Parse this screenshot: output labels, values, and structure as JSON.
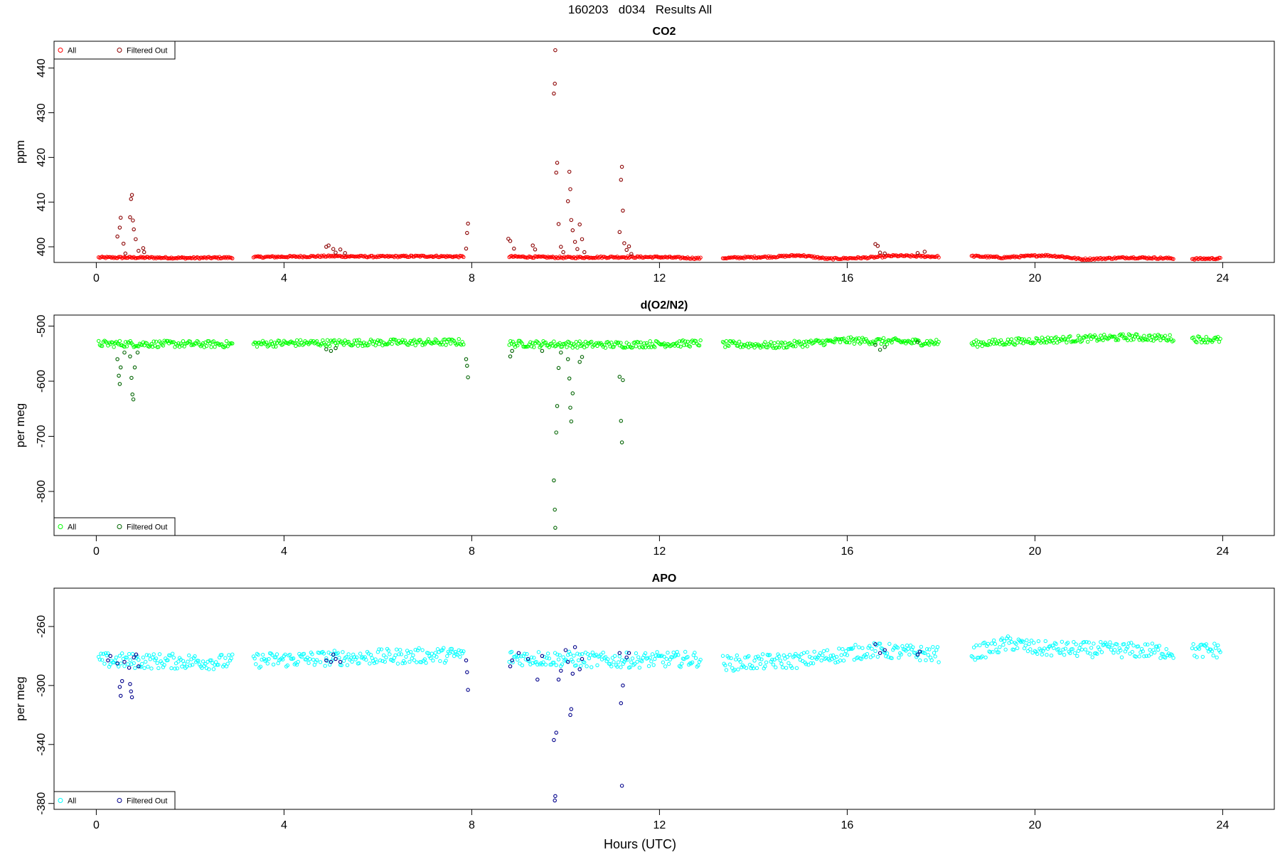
{
  "figure": {
    "title": "160203   d034   Results All",
    "xlabel": "Hours (UTC)"
  },
  "chart_data": [
    {
      "type": "scatter",
      "title": "CO2",
      "xlabel": "",
      "ylabel": "ppm",
      "xlim": [
        -0.9,
        25.1
      ],
      "ylim": [
        396.5,
        446
      ],
      "xticks": [
        0,
        4,
        8,
        12,
        16,
        20,
        24
      ],
      "yticks": [
        400,
        410,
        420,
        430,
        440
      ],
      "legend": {
        "position": "top-left",
        "entries": [
          "All",
          "Filtered Out"
        ]
      },
      "colors": {
        "all": "#ff0000",
        "filtered": "#8b0000"
      },
      "segments": [
        [
          0.05,
          2.9
        ],
        [
          3.35,
          7.85
        ],
        [
          8.8,
          12.9
        ],
        [
          13.35,
          17.95
        ],
        [
          18.65,
          22.95
        ],
        [
          23.35,
          23.95
        ]
      ],
      "baseline": [
        [
          0.0,
          397.6
        ],
        [
          1.0,
          397.6
        ],
        [
          2.0,
          397.5
        ],
        [
          2.9,
          397.6
        ],
        [
          3.4,
          397.7
        ],
        [
          5.0,
          397.9
        ],
        [
          6.0,
          397.8
        ],
        [
          7.0,
          397.9
        ],
        [
          7.85,
          397.8
        ],
        [
          8.8,
          397.8
        ],
        [
          10.0,
          397.6
        ],
        [
          11.0,
          397.7
        ],
        [
          12.0,
          397.7
        ],
        [
          12.9,
          397.4
        ],
        [
          13.4,
          397.5
        ],
        [
          14.5,
          397.8
        ],
        [
          15.0,
          398.1
        ],
        [
          15.6,
          397.3
        ],
        [
          16.5,
          397.6
        ],
        [
          17.0,
          398.0
        ],
        [
          17.95,
          397.8
        ],
        [
          18.7,
          397.9
        ],
        [
          19.3,
          397.6
        ],
        [
          20.2,
          398.1
        ],
        [
          20.6,
          397.8
        ],
        [
          21.0,
          397.2
        ],
        [
          22.0,
          397.6
        ],
        [
          23.0,
          397.4
        ],
        [
          23.35,
          397.3
        ],
        [
          23.95,
          397.4
        ]
      ],
      "filtered_out": [
        [
          0.45,
          402.3
        ],
        [
          0.5,
          404.3
        ],
        [
          0.52,
          406.5
        ],
        [
          0.58,
          400.7
        ],
        [
          0.62,
          398.5
        ],
        [
          0.72,
          406.6
        ],
        [
          0.74,
          410.7
        ],
        [
          0.76,
          411.6
        ],
        [
          0.78,
          405.9
        ],
        [
          0.8,
          403.9
        ],
        [
          0.84,
          401.7
        ],
        [
          0.9,
          399.1
        ],
        [
          1.0,
          399.7
        ],
        [
          1.02,
          398.8
        ],
        [
          4.9,
          400.0
        ],
        [
          4.95,
          400.3
        ],
        [
          5.05,
          399.5
        ],
        [
          5.1,
          398.7
        ],
        [
          5.2,
          399.4
        ],
        [
          5.3,
          398.6
        ],
        [
          7.88,
          399.6
        ],
        [
          7.9,
          403.1
        ],
        [
          7.92,
          405.2
        ],
        [
          8.78,
          401.8
        ],
        [
          8.82,
          401.3
        ],
        [
          8.9,
          399.6
        ],
        [
          9.3,
          400.3
        ],
        [
          9.35,
          399.4
        ],
        [
          9.75,
          434.3
        ],
        [
          9.77,
          436.5
        ],
        [
          9.78,
          444.0
        ],
        [
          9.8,
          416.6
        ],
        [
          9.82,
          418.8
        ],
        [
          9.85,
          405.1
        ],
        [
          9.9,
          400.0
        ],
        [
          9.95,
          398.8
        ],
        [
          10.05,
          410.2
        ],
        [
          10.08,
          416.8
        ],
        [
          10.1,
          412.9
        ],
        [
          10.12,
          406.0
        ],
        [
          10.15,
          403.7
        ],
        [
          10.2,
          401.1
        ],
        [
          10.25,
          399.5
        ],
        [
          10.3,
          405.0
        ],
        [
          10.35,
          401.7
        ],
        [
          10.4,
          398.8
        ],
        [
          11.15,
          403.3
        ],
        [
          11.18,
          415.0
        ],
        [
          11.2,
          417.9
        ],
        [
          11.22,
          408.1
        ],
        [
          11.25,
          400.8
        ],
        [
          11.3,
          399.3
        ],
        [
          11.35,
          400.1
        ],
        [
          11.4,
          398.4
        ],
        [
          16.6,
          400.6
        ],
        [
          16.65,
          400.2
        ],
        [
          16.7,
          398.7
        ],
        [
          16.8,
          398.5
        ],
        [
          17.5,
          398.6
        ],
        [
          17.65,
          398.9
        ]
      ]
    },
    {
      "type": "scatter",
      "title": "d(O2/N2)",
      "xlabel": "",
      "ylabel": "per meg",
      "xlim": [
        -0.9,
        25.1
      ],
      "ylim": [
        -880,
        -480
      ],
      "xticks": [
        0,
        4,
        8,
        12,
        16,
        20,
        24
      ],
      "yticks": [
        -500,
        -600,
        -700,
        -800
      ],
      "legend": {
        "position": "bottom-left",
        "entries": [
          "All",
          "Filtered Out"
        ]
      },
      "colors": {
        "all": "#00ff00",
        "filtered": "#006400"
      },
      "segments": [
        [
          0.05,
          2.9
        ],
        [
          3.35,
          7.85
        ],
        [
          8.8,
          12.9
        ],
        [
          13.35,
          17.95
        ],
        [
          18.65,
          22.95
        ],
        [
          23.35,
          23.95
        ]
      ],
      "baseline": [
        [
          0.0,
          -532
        ],
        [
          3.0,
          -533
        ],
        [
          4.0,
          -531
        ],
        [
          7.85,
          -529
        ],
        [
          8.8,
          -532
        ],
        [
          11.0,
          -534
        ],
        [
          12.9,
          -531
        ],
        [
          13.4,
          -533
        ],
        [
          14.5,
          -535
        ],
        [
          16.0,
          -526
        ],
        [
          17.95,
          -530
        ],
        [
          18.7,
          -532
        ],
        [
          20.0,
          -526
        ],
        [
          22.0,
          -520
        ],
        [
          22.95,
          -522
        ],
        [
          23.95,
          -525
        ]
      ],
      "filtered_out": [
        [
          0.45,
          -560
        ],
        [
          0.48,
          -590
        ],
        [
          0.5,
          -605
        ],
        [
          0.52,
          -575
        ],
        [
          0.6,
          -548
        ],
        [
          0.72,
          -555
        ],
        [
          0.75,
          -594
        ],
        [
          0.77,
          -624
        ],
        [
          0.79,
          -633
        ],
        [
          0.82,
          -575
        ],
        [
          0.88,
          -548
        ],
        [
          4.9,
          -542
        ],
        [
          5.0,
          -545
        ],
        [
          5.1,
          -540
        ],
        [
          7.88,
          -560
        ],
        [
          7.9,
          -572
        ],
        [
          7.92,
          -593
        ],
        [
          8.82,
          -555
        ],
        [
          8.86,
          -545
        ],
        [
          9.5,
          -545
        ],
        [
          9.75,
          -780
        ],
        [
          9.77,
          -833
        ],
        [
          9.78,
          -866
        ],
        [
          9.8,
          -693
        ],
        [
          9.82,
          -645
        ],
        [
          9.85,
          -576
        ],
        [
          9.9,
          -548
        ],
        [
          10.05,
          -560
        ],
        [
          10.08,
          -595
        ],
        [
          10.1,
          -648
        ],
        [
          10.12,
          -673
        ],
        [
          10.15,
          -622
        ],
        [
          10.3,
          -565
        ],
        [
          10.35,
          -556
        ],
        [
          11.15,
          -592
        ],
        [
          11.18,
          -672
        ],
        [
          11.2,
          -711
        ],
        [
          11.22,
          -598
        ],
        [
          16.6,
          -534
        ],
        [
          16.7,
          -543
        ],
        [
          16.8,
          -538
        ],
        [
          17.5,
          -529
        ]
      ]
    },
    {
      "type": "scatter",
      "title": "APO",
      "xlabel": "",
      "ylabel": "per meg",
      "xlim": [
        -0.9,
        25.1
      ],
      "ylim": [
        -384,
        -234
      ],
      "xticks": [
        0,
        4,
        8,
        12,
        16,
        20,
        24
      ],
      "yticks": [
        -260,
        -300,
        -340,
        -380
      ],
      "legend": {
        "position": "bottom-left",
        "entries": [
          "All",
          "Filtered Out"
        ]
      },
      "colors": {
        "all": "#00ffff",
        "filtered": "#00008b"
      },
      "segments": [
        [
          0.05,
          2.9
        ],
        [
          3.35,
          7.85
        ],
        [
          8.8,
          12.9
        ],
        [
          13.35,
          17.95
        ],
        [
          18.65,
          22.95
        ],
        [
          23.35,
          23.95
        ]
      ],
      "baseline": [
        [
          0.0,
          -283
        ],
        [
          2.9,
          -284
        ],
        [
          3.4,
          -283
        ],
        [
          5.5,
          -281
        ],
        [
          7.85,
          -279
        ],
        [
          8.8,
          -281
        ],
        [
          11.0,
          -283
        ],
        [
          12.9,
          -282
        ],
        [
          13.4,
          -285
        ],
        [
          15.0,
          -283
        ],
        [
          16.5,
          -276
        ],
        [
          17.95,
          -279
        ],
        [
          18.7,
          -278
        ],
        [
          19.5,
          -271
        ],
        [
          20.0,
          -275
        ],
        [
          22.0,
          -276
        ],
        [
          22.95,
          -277
        ],
        [
          23.95,
          -276
        ]
      ],
      "filtered_out": [
        [
          0.25,
          -283
        ],
        [
          0.3,
          -280
        ],
        [
          0.45,
          -285
        ],
        [
          0.5,
          -301
        ],
        [
          0.52,
          -307
        ],
        [
          0.55,
          -297
        ],
        [
          0.6,
          -284
        ],
        [
          0.7,
          -288
        ],
        [
          0.72,
          -299
        ],
        [
          0.74,
          -304
        ],
        [
          0.76,
          -308
        ],
        [
          0.8,
          -281
        ],
        [
          0.85,
          -279
        ],
        [
          0.9,
          -287
        ],
        [
          4.9,
          -283
        ],
        [
          5.0,
          -284
        ],
        [
          5.05,
          -279
        ],
        [
          5.1,
          -282
        ],
        [
          5.2,
          -284
        ],
        [
          7.88,
          -283
        ],
        [
          7.9,
          -291
        ],
        [
          7.92,
          -303
        ],
        [
          8.82,
          -287
        ],
        [
          8.86,
          -283
        ],
        [
          9.0,
          -278
        ],
        [
          9.2,
          -282
        ],
        [
          9.4,
          -296
        ],
        [
          9.5,
          -280
        ],
        [
          9.75,
          -337
        ],
        [
          9.77,
          -378
        ],
        [
          9.78,
          -375
        ],
        [
          9.8,
          -332
        ],
        [
          9.85,
          -296
        ],
        [
          9.9,
          -290
        ],
        [
          10.0,
          -276
        ],
        [
          10.05,
          -284
        ],
        [
          10.1,
          -320
        ],
        [
          10.12,
          -316
        ],
        [
          10.15,
          -292
        ],
        [
          10.2,
          -274
        ],
        [
          10.3,
          -289
        ],
        [
          10.35,
          -282
        ],
        [
          11.15,
          -278
        ],
        [
          11.18,
          -312
        ],
        [
          11.2,
          -368
        ],
        [
          11.22,
          -300
        ],
        [
          11.3,
          -281
        ],
        [
          11.35,
          -278
        ],
        [
          16.6,
          -272
        ],
        [
          16.7,
          -278
        ],
        [
          16.8,
          -276
        ],
        [
          17.5,
          -279
        ],
        [
          17.55,
          -277
        ]
      ]
    }
  ]
}
